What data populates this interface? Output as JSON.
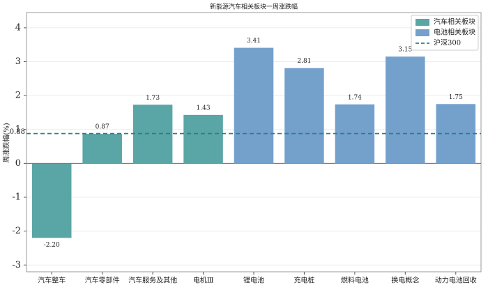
{
  "chart_data": {
    "type": "bar",
    "title": "新能源汽车相关板块一周涨跌幅",
    "y_label": "周涨跌幅(%)",
    "categories": [
      "汽车整车",
      "汽车零部件",
      "汽车服务及其他",
      "电机Ⅲ",
      "锂电池",
      "充电桩",
      "燃料电池",
      "换电概念",
      "动力电池回收"
    ],
    "series": [
      {
        "name": "汽车相关板块",
        "color": "#5aa5a5",
        "values": [
          -2.2,
          0.87,
          1.73,
          1.43,
          null,
          null,
          null,
          null,
          null
        ],
        "value_labels": [
          "-2.20",
          "0.87",
          "1.73",
          "1.43",
          null,
          null,
          null,
          null,
          null
        ]
      },
      {
        "name": "电池相关板块",
        "color": "#74a0cc",
        "values": [
          null,
          null,
          null,
          null,
          3.41,
          2.81,
          1.74,
          3.15,
          1.75
        ],
        "value_labels": [
          null,
          null,
          null,
          null,
          "3.41",
          "2.81",
          "1.74",
          "3.15",
          "1.75"
        ]
      }
    ],
    "reference_line": {
      "name": "沪深300",
      "value": 0.88,
      "color": "#2a7f8a"
    },
    "ylim": [
      -3.2,
      4.45
    ],
    "yticks": [
      -3,
      -2,
      -1,
      0,
      1,
      2,
      3,
      4
    ],
    "grid": true,
    "legend": "upper right"
  }
}
